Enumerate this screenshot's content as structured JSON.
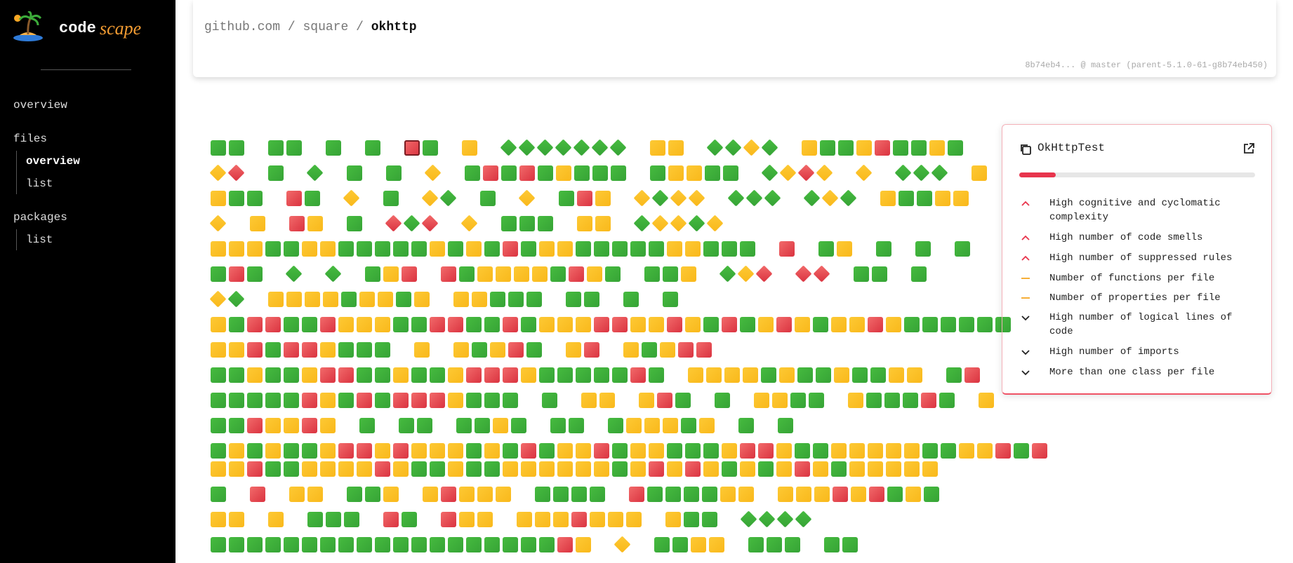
{
  "sidebar": {
    "logo": {
      "code": "code",
      "scape": "scape"
    },
    "nav": {
      "overview": "overview",
      "files": {
        "label": "files",
        "items": [
          "overview",
          "list"
        ]
      },
      "packages": {
        "label": "packages",
        "items": [
          "list"
        ]
      }
    }
  },
  "header": {
    "breadcrumb": [
      "github.com",
      "/",
      "square",
      "/",
      "okhttp"
    ],
    "commit": "8b74eb4... @ master (parent-5.1.0-61-g8b74eb450)"
  },
  "panel": {
    "title": "OkHttpTest",
    "items": [
      "High cognitive and cyclomatic complexity",
      "High number of code smells",
      "High number of suppressed rules",
      "Number of functions per file",
      "Number of properties per file",
      "High number of logical lines of code",
      "High number of imports",
      "More than one class per file"
    ]
  }
}
